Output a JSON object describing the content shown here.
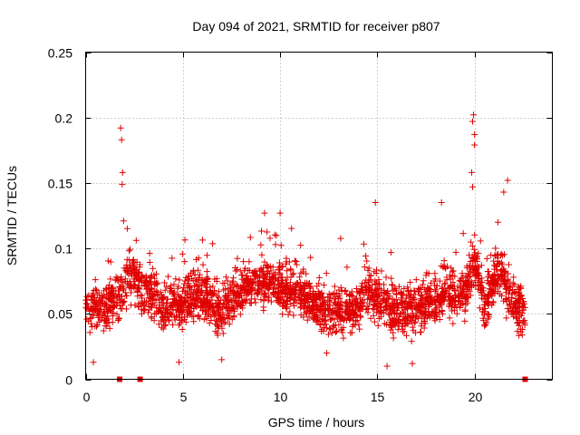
{
  "chart_data": {
    "type": "scatter",
    "title": "Day 094 of 2021, SRMTID for receiver p807",
    "xlabel": "GPS time / hours",
    "ylabel": "SRMTID / TECUs",
    "xlim": [
      0,
      24
    ],
    "ylim": [
      0,
      0.25
    ],
    "grid": true,
    "marker": "+",
    "color": "#e00000",
    "xticks": [
      0,
      5,
      10,
      15,
      20
    ],
    "xtick_labels": [
      "0",
      "5",
      "10",
      "15",
      "20"
    ],
    "yticks": [
      0,
      0.05,
      0.1,
      0.15,
      0.2,
      0.25
    ],
    "ytick_labels": [
      "0",
      "0.05",
      "0.1",
      "0.15",
      "0.2",
      "0.25"
    ],
    "series": [
      {
        "name": "SRMTID",
        "baseline_level": [
          [
            0.0,
            0.055
          ],
          [
            1.0,
            0.055
          ],
          [
            1.8,
            0.065
          ],
          [
            2.2,
            0.08
          ],
          [
            2.8,
            0.07
          ],
          [
            4.0,
            0.055
          ],
          [
            5.0,
            0.06
          ],
          [
            6.0,
            0.065
          ],
          [
            7.0,
            0.05
          ],
          [
            8.0,
            0.07
          ],
          [
            9.0,
            0.075
          ],
          [
            10.0,
            0.07
          ],
          [
            11.0,
            0.065
          ],
          [
            12.5,
            0.05
          ],
          [
            13.5,
            0.05
          ],
          [
            14.5,
            0.065
          ],
          [
            15.3,
            0.06
          ],
          [
            16.0,
            0.05
          ],
          [
            17.0,
            0.055
          ],
          [
            18.5,
            0.065
          ],
          [
            19.5,
            0.065
          ],
          [
            20.0,
            0.09
          ],
          [
            20.5,
            0.055
          ],
          [
            21.2,
            0.085
          ],
          [
            21.8,
            0.065
          ],
          [
            22.6,
            0.05
          ]
        ],
        "notable_points": [
          [
            1.8,
            0.192
          ],
          [
            1.85,
            0.183
          ],
          [
            1.9,
            0.158
          ],
          [
            1.88,
            0.149
          ],
          [
            1.95,
            0.121
          ],
          [
            19.95,
            0.202
          ],
          [
            19.9,
            0.197
          ],
          [
            20.0,
            0.187
          ],
          [
            20.0,
            0.179
          ],
          [
            19.85,
            0.158
          ],
          [
            19.9,
            0.147
          ],
          [
            21.7,
            0.152
          ],
          [
            21.5,
            0.143
          ],
          [
            21.2,
            0.12
          ],
          [
            14.9,
            0.135
          ],
          [
            18.3,
            0.135
          ],
          [
            10.0,
            0.127
          ],
          [
            9.2,
            0.127
          ],
          [
            4.8,
            0.013
          ],
          [
            7.0,
            0.015
          ],
          [
            0.4,
            0.013
          ],
          [
            15.5,
            0.01
          ],
          [
            16.8,
            0.012
          ],
          [
            12.4,
            0.02
          ]
        ],
        "flag_points": [
          [
            1.75,
            0.0
          ],
          [
            2.8,
            0.0
          ],
          [
            22.6,
            0.0
          ]
        ],
        "time_range_hours": [
          0,
          22.6
        ],
        "point_count": 2600
      }
    ]
  }
}
